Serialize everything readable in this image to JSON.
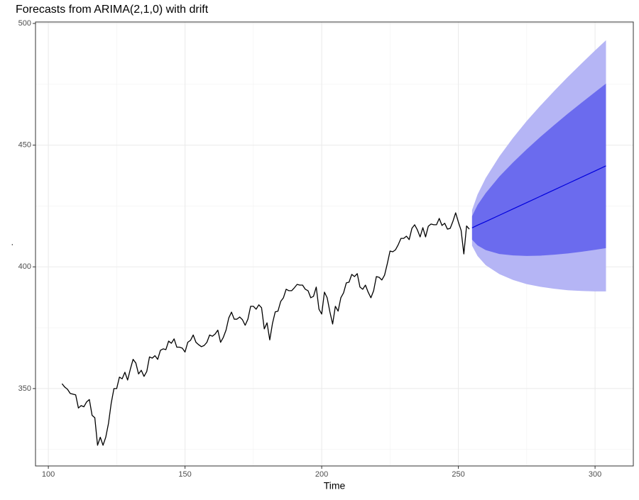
{
  "chart_data": {
    "type": "line",
    "title": "Forecasts from ARIMA(2,1,0) with drift",
    "xlabel": "Time",
    "ylabel": ".",
    "xlim": [
      95.3,
      314.0
    ],
    "ylim": [
      318.2,
      500.6
    ],
    "xticks": [
      100,
      150,
      200,
      250,
      300
    ],
    "yticks": [
      350,
      400,
      450,
      500
    ],
    "x_minor_grid": [
      125,
      175,
      225,
      275
    ],
    "y_minor_grid": [
      325,
      375,
      425,
      475
    ],
    "grid": true,
    "series": [
      {
        "color": "#000000",
        "x": [
          105,
          106,
          107,
          108,
          109,
          110,
          111,
          112,
          113,
          114,
          115,
          116,
          117,
          118,
          119,
          120,
          121,
          122,
          123,
          124,
          125,
          126,
          127,
          128,
          129,
          130,
          131,
          132,
          133,
          134,
          135,
          136,
          137,
          138,
          139,
          140,
          141,
          142,
          143,
          144,
          145,
          146,
          147,
          148,
          149,
          150,
          151,
          152,
          153,
          154,
          155,
          156,
          157,
          158,
          159,
          160,
          161,
          162,
          163,
          164,
          165,
          166,
          167,
          168,
          169,
          170,
          171,
          172,
          173,
          174,
          175,
          176,
          177,
          178,
          179,
          180,
          181,
          182,
          183,
          184,
          185,
          186,
          187,
          188,
          189,
          190,
          191,
          192,
          193,
          194,
          195,
          196,
          197,
          198,
          199,
          200,
          201,
          202,
          203,
          204,
          205,
          206,
          207,
          208,
          209,
          210,
          211,
          212,
          213,
          214,
          215,
          216,
          217,
          218,
          219,
          220,
          221,
          222,
          223,
          224,
          225,
          226,
          227,
          228,
          229,
          230,
          231,
          232,
          233,
          234,
          235,
          236,
          237,
          238,
          239,
          240,
          241,
          242,
          243,
          244,
          245,
          246,
          247,
          248,
          249,
          250,
          251,
          252,
          253,
          254
        ],
        "values": [
          352,
          350.6,
          349.7,
          348,
          347.7,
          347.4,
          342,
          343,
          342.5,
          344.5,
          345.5,
          339,
          338,
          326.7,
          330,
          326.7,
          330,
          335.7,
          344,
          350,
          350,
          354.7,
          354,
          356.7,
          353.5,
          358,
          362,
          360.5,
          356,
          357.5,
          355,
          357,
          363,
          362.5,
          363.5,
          362,
          365.7,
          366.3,
          366,
          369.5,
          368.6,
          370.4,
          367,
          367,
          366.6,
          365,
          369,
          369.8,
          372,
          369,
          368,
          367.2,
          367.7,
          369,
          372,
          371.5,
          372.4,
          374,
          369,
          371,
          374,
          379,
          381.4,
          378.5,
          378.5,
          379.4,
          378.3,
          376,
          378.5,
          383.8,
          383.8,
          382.6,
          384.4,
          383.2,
          374.5,
          377,
          370,
          376.8,
          381.5,
          381.8,
          385.8,
          387.3,
          390.8,
          390.2,
          390.2,
          391.4,
          392.8,
          392.5,
          392.5,
          390.8,
          390.2,
          387.3,
          387.9,
          391.7,
          382.6,
          380.6,
          389.6,
          387.3,
          381.5,
          376.5,
          383.8,
          381.8,
          387.3,
          389.3,
          393.4,
          393.7,
          396.9,
          396,
          397.2,
          391.7,
          390.8,
          392.5,
          389.6,
          387.3,
          390.2,
          396,
          395.7,
          394.6,
          396.6,
          401.3,
          406.5,
          406.2,
          407,
          409.1,
          411.7,
          411.7,
          412.6,
          411.2,
          415.8,
          417.3,
          415.2,
          412.3,
          416.1,
          412.3,
          416.7,
          417.6,
          417.3,
          417.3,
          419.9,
          417,
          417.9,
          415.5,
          415.8,
          418.7,
          422.2,
          418.4,
          415,
          405.3,
          416.8,
          415.5
        ]
      }
    ],
    "forecast": {
      "x": [
        255,
        257,
        260,
        265,
        270,
        275,
        280,
        285,
        290,
        295,
        300,
        304
      ],
      "mean": [
        416.0,
        417.1,
        418.6,
        421.2,
        423.8,
        426.4,
        429.0,
        431.6,
        434.2,
        436.8,
        439.4,
        441.5
      ],
      "lower80": [
        411.2,
        408.8,
        406.9,
        405.3,
        404.7,
        404.5,
        404.6,
        405.0,
        405.5,
        406.2,
        407.0,
        407.7
      ],
      "upper80": [
        420.8,
        425.4,
        430.3,
        437.1,
        442.9,
        448.3,
        453.4,
        458.2,
        462.9,
        467.4,
        471.8,
        475.3
      ],
      "lower95": [
        408.7,
        404.5,
        400.7,
        397.0,
        394.6,
        392.9,
        391.8,
        391.0,
        390.4,
        390.1,
        389.9,
        389.9
      ],
      "upper95": [
        423.3,
        429.7,
        436.5,
        445.4,
        453.0,
        459.9,
        466.2,
        472.2,
        478.0,
        483.5,
        488.9,
        493.1
      ],
      "mean_color": "#0000dd",
      "color80": "#6b6bee",
      "color95": "#b5b5f5"
    }
  }
}
